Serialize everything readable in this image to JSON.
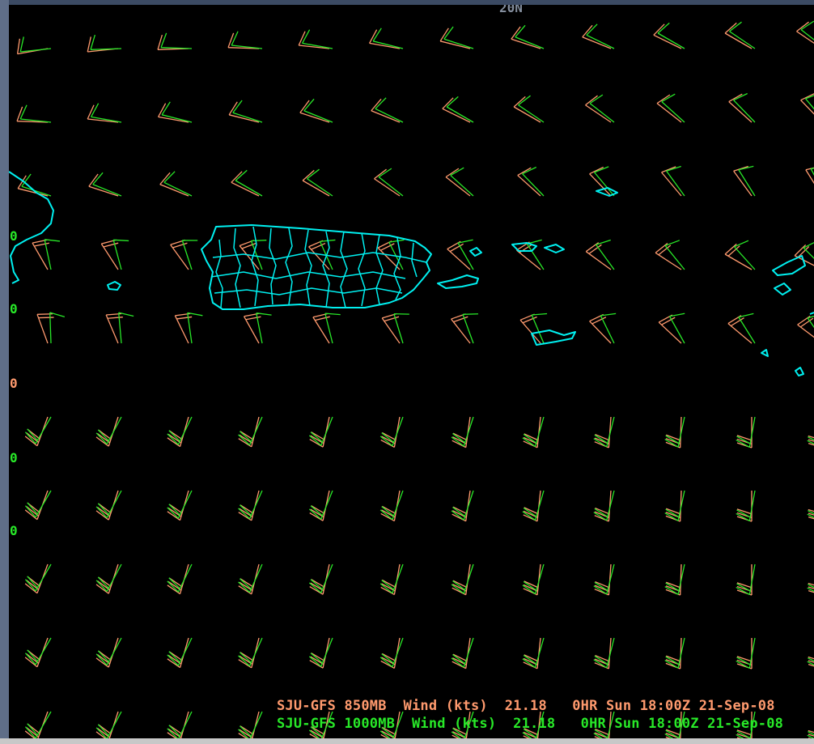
{
  "map": {
    "lat_label": "20N",
    "edge_labels": [
      {
        "text": "0",
        "color": "#28e828"
      },
      {
        "text": "0",
        "color": "#28e828"
      },
      {
        "text": "0",
        "color": "#ff9a6e"
      },
      {
        "text": "0",
        "color": "#28e828"
      },
      {
        "text": "0",
        "color": "#28e828"
      }
    ],
    "colors": {
      "coastline": "#00f0f0",
      "wind_850": "#ff9a6e",
      "wind_1000": "#28e828",
      "background": "#000000"
    }
  },
  "legend": {
    "line_850": "SJU-GFS 850MB  Wind (kts)  21.18   0HR Sun 18:00Z 21-Sep-08",
    "line_1000": "SJU-GFS 1000MB  Wind (kts)  21.18   0HR Sun 18:00Z 21-Sep-08"
  }
}
